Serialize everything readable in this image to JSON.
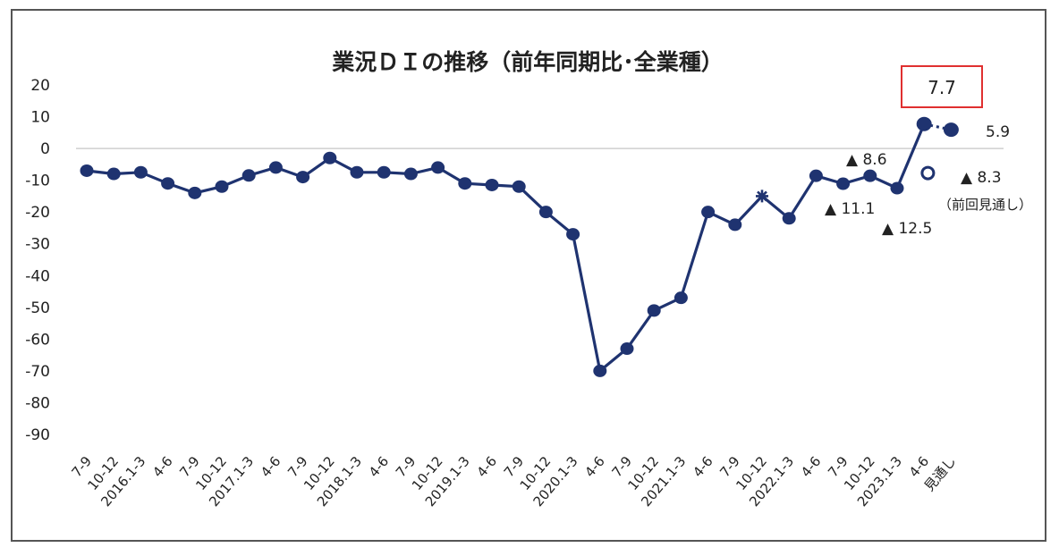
{
  "chart_data": {
    "type": "line",
    "title": "業況ＤＩの推移（前年同期比･全業種）",
    "ylim": [
      -90,
      20
    ],
    "yticks": [
      20,
      10,
      0,
      -10,
      -20,
      -30,
      -40,
      -50,
      -60,
      -70,
      -80,
      -90
    ],
    "grid": false,
    "categories": [
      "7-9",
      "10-12",
      "2016.1-3",
      "4-6",
      "7-9",
      "10-12",
      "2017.1-3",
      "4-6",
      "7-9",
      "10-12",
      "2018.1-3",
      "4-6",
      "7-9",
      "10-12",
      "2019.1-3",
      "4-6",
      "7-9",
      "10-12",
      "2020.1-3",
      "4-6",
      "7-9",
      "10-12",
      "2021.1-3",
      "4-6",
      "7-9",
      "10-12",
      "2022.1-3",
      "4-6",
      "7-9",
      "10-12",
      "2023.1-3",
      "4-6",
      "見通し"
    ],
    "series": [
      {
        "color": "#1f3370",
        "values": [
          -7,
          -8,
          -7.5,
          -11,
          -14,
          -12,
          -8.5,
          -6,
          -9,
          -3,
          -7.5,
          -7.5,
          -8,
          -6,
          -11,
          -11.5,
          -12,
          -20,
          -27,
          -70,
          -63,
          -51,
          -47,
          -20,
          -24,
          -15,
          -22,
          -8.6,
          -11.1,
          -8.6,
          -12.5,
          7.7,
          5.9
        ]
      }
    ],
    "previous_forecast": {
      "category": "見通し",
      "value": -8.3,
      "marker": "hollow-circle"
    },
    "annotations": {
      "latest_value": "7.7",
      "forecast_value": "5.9",
      "prev_forecast_value": "▲ 8.3",
      "prev_forecast_label": "（前回見通し）",
      "q3_2022": "▲ 8.6",
      "q2_2022": "▲ 11.1",
      "q1_2023": "▲ 12.5"
    },
    "callout_border_color": "#e03030"
  }
}
